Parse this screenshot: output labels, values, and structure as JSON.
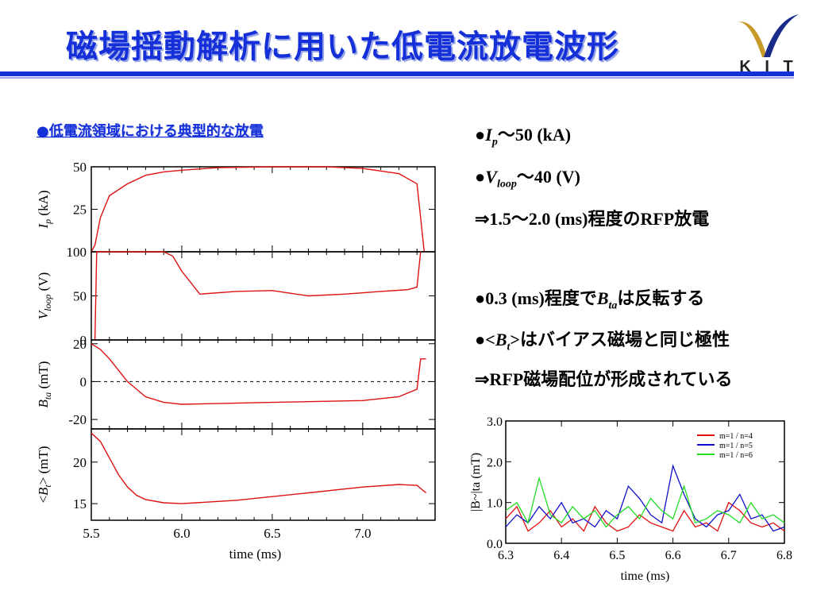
{
  "slide": {
    "title": "磁場揺動解析に用いた低電流放電波形",
    "logo_text": "K I T",
    "subtitle": "●低電流領域における典型的な放電"
  },
  "bullets": {
    "b1": {
      "mark": "●",
      "sym": "I",
      "sub": "p",
      "text": "～50 (kA)"
    },
    "b2": {
      "mark": "●",
      "sym": "V",
      "sub": "loop",
      "text": "～40 (V)"
    },
    "b3": {
      "text": "⇒1.5～2.0 (ms)程度のRFP放電"
    },
    "b4": {
      "pre": "●0.3 (ms)程度で",
      "sym": "B",
      "sub": "ta",
      "post": "は反転する"
    },
    "b5": {
      "pre": "●<",
      "sym": "B",
      "sub": "t",
      "post": ">はバイアス磁場と同じ極性"
    },
    "b6": {
      "text": "⇒RFP磁場配位が形成されている"
    }
  },
  "colors": {
    "title_blue": "#1530d8",
    "trace_red": "#dd1111",
    "series_red": "#e01010",
    "series_blue": "#1010cc",
    "series_green": "#22dd22"
  },
  "chart_data": [
    {
      "type": "line",
      "panels": [
        {
          "ylabel_sym": "I",
          "ylabel_sub": "p",
          "ylabel_unit": "(kA)",
          "yticks": [
            "50",
            "25"
          ],
          "ylim": [
            0,
            50
          ],
          "x": [
            5.5,
            5.52,
            5.55,
            5.6,
            5.7,
            5.8,
            5.9,
            6.0,
            6.2,
            6.5,
            6.8,
            7.0,
            7.2,
            7.3,
            7.32,
            7.34
          ],
          "y": [
            0,
            4,
            20,
            33,
            40,
            45,
            47,
            48,
            49.5,
            50,
            50,
            49,
            46,
            40,
            20,
            0
          ]
        },
        {
          "ylabel_sym": "V",
          "ylabel_sub": "loop",
          "ylabel_unit": "(V)",
          "yticks": [
            "100",
            "50",
            "0"
          ],
          "ylim": [
            0,
            100
          ],
          "x": [
            5.52,
            5.53,
            5.9,
            5.95,
            6.0,
            6.05,
            6.1,
            6.3,
            6.5,
            6.7,
            6.9,
            7.1,
            7.25,
            7.3,
            7.32
          ],
          "y": [
            0,
            100,
            100,
            95,
            78,
            65,
            52,
            55,
            56,
            50,
            52,
            55,
            57,
            60,
            100
          ]
        },
        {
          "ylabel_sym": "B",
          "ylabel_sub": "ta",
          "ylabel_unit": "(mT)",
          "yticks": [
            "20",
            "0",
            "-20"
          ],
          "ylim": [
            -25,
            22
          ],
          "x": [
            5.5,
            5.55,
            5.6,
            5.65,
            5.7,
            5.75,
            5.8,
            5.9,
            6.0,
            6.5,
            7.0,
            7.2,
            7.3,
            7.32,
            7.35
          ],
          "y": [
            20,
            17,
            12,
            6,
            0,
            -4,
            -8,
            -11,
            -12,
            -11,
            -10,
            -8,
            -4,
            12,
            12
          ]
        },
        {
          "ylabel_sym": "B",
          "ylabel_sub": "t",
          "ylabel_unit": "(mT)",
          "yticks": [
            "20",
            "15"
          ],
          "ylim": [
            13,
            24
          ],
          "x": [
            5.5,
            5.55,
            5.6,
            5.65,
            5.7,
            5.75,
            5.8,
            5.9,
            6.0,
            6.3,
            6.7,
            7.0,
            7.2,
            7.3,
            7.35
          ],
          "y": [
            23.5,
            22.5,
            20.5,
            18.5,
            17,
            16,
            15.5,
            15.1,
            15,
            15.4,
            16.3,
            17.0,
            17.3,
            17.2,
            16.3
          ]
        }
      ],
      "xticks": [
        "5.5",
        "6.0",
        "6.5",
        "7.0"
      ],
      "xlim": [
        5.5,
        7.4
      ],
      "xlabel": "time (ms)"
    },
    {
      "type": "line",
      "xticks": [
        "6.3",
        "6.4",
        "6.5",
        "6.6",
        "6.7",
        "6.8"
      ],
      "yticks": [
        "3.0",
        "2.0",
        "1.0",
        "0.0"
      ],
      "xlim": [
        6.3,
        6.8
      ],
      "ylim": [
        0,
        3
      ],
      "xlabel": "time (ms)",
      "ylabel": "|B~|ta (mT)",
      "legend_position": "top-right",
      "series": [
        {
          "name": "m=1 / n=4",
          "color": "#e01010",
          "x": [
            6.3,
            6.32,
            6.34,
            6.36,
            6.38,
            6.4,
            6.42,
            6.44,
            6.46,
            6.48,
            6.5,
            6.52,
            6.54,
            6.56,
            6.58,
            6.6,
            6.62,
            6.64,
            6.66,
            6.68,
            6.7,
            6.72,
            6.74,
            6.76,
            6.78,
            6.8
          ],
          "y": [
            0.6,
            0.9,
            0.3,
            0.5,
            0.8,
            0.4,
            0.6,
            0.3,
            0.9,
            0.5,
            0.3,
            0.4,
            0.7,
            0.5,
            0.4,
            0.3,
            0.8,
            0.4,
            0.5,
            0.3,
            1.0,
            0.8,
            0.5,
            0.4,
            0.5,
            0.3
          ]
        },
        {
          "name": "m=1 / n=5",
          "color": "#1010cc",
          "x": [
            6.3,
            6.32,
            6.34,
            6.36,
            6.38,
            6.4,
            6.42,
            6.44,
            6.46,
            6.48,
            6.5,
            6.52,
            6.54,
            6.56,
            6.58,
            6.6,
            6.62,
            6.64,
            6.66,
            6.68,
            6.7,
            6.72,
            6.74,
            6.76,
            6.78,
            6.8
          ],
          "y": [
            0.4,
            0.7,
            0.5,
            0.9,
            0.6,
            1.0,
            0.5,
            0.6,
            0.4,
            0.8,
            0.6,
            1.4,
            1.1,
            0.7,
            0.5,
            1.9,
            1.2,
            0.6,
            0.4,
            0.7,
            0.8,
            1.2,
            0.6,
            0.7,
            0.3,
            0.4
          ]
        },
        {
          "name": "m=1 / n=6",
          "color": "#22dd22",
          "x": [
            6.3,
            6.32,
            6.34,
            6.36,
            6.38,
            6.4,
            6.42,
            6.44,
            6.46,
            6.48,
            6.5,
            6.52,
            6.54,
            6.56,
            6.58,
            6.6,
            6.62,
            6.64,
            6.66,
            6.68,
            6.7,
            6.72,
            6.74,
            6.76,
            6.78,
            6.8
          ],
          "y": [
            0.8,
            1.0,
            0.5,
            1.6,
            0.7,
            0.5,
            0.9,
            0.6,
            0.8,
            0.4,
            0.7,
            0.9,
            0.6,
            1.1,
            0.8,
            0.6,
            1.4,
            0.5,
            0.6,
            0.8,
            0.7,
            0.5,
            1.0,
            0.6,
            0.7,
            0.5
          ]
        }
      ]
    }
  ]
}
